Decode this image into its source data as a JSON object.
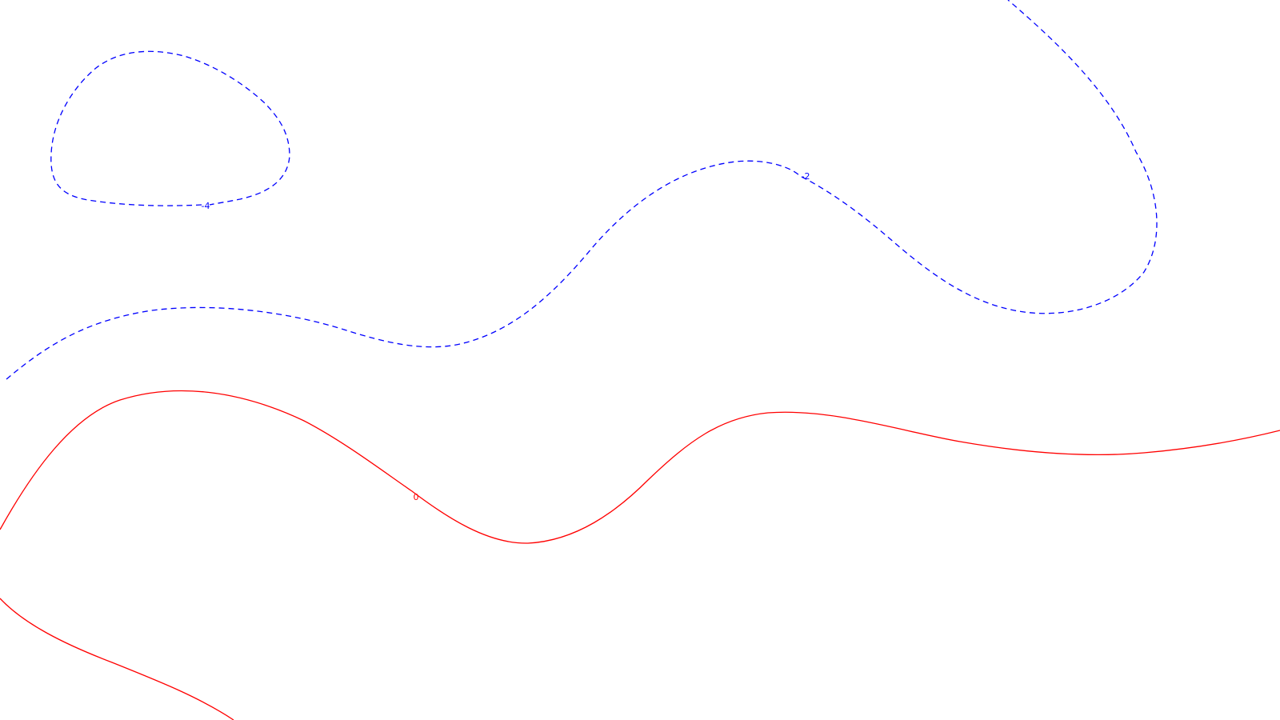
{
  "contours": {
    "lines": [
      {
        "id": "neg4-loop",
        "style": "dashed",
        "color": "#0000ff",
        "label": "-4"
      },
      {
        "id": "neg2-wave",
        "style": "dashed",
        "color": "#0000ff",
        "label": "-2"
      },
      {
        "id": "zero-main",
        "style": "solid",
        "color": "#ff0000",
        "label": "0"
      },
      {
        "id": "zero-bottom",
        "style": "solid",
        "color": "#ff0000",
        "label": ""
      }
    ]
  }
}
